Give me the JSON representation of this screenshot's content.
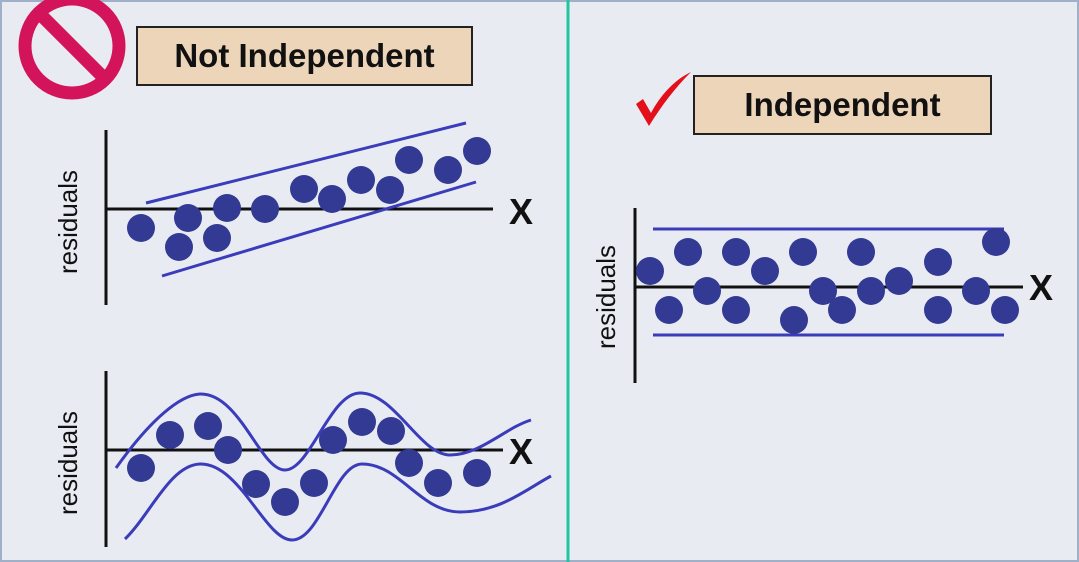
{
  "colors": {
    "background": "#e8ecf2",
    "divider": "#20c4a0",
    "dot": "#333a93",
    "band": "#3a3cba",
    "axis": "#111111",
    "label_box": "#edd5b9",
    "no_sign": "#d4145a",
    "check": "#e3101c"
  },
  "left_panel": {
    "title": "Not Independent",
    "status_icon": "no-sign-icon",
    "plot_trend": {
      "y_label": "residuals",
      "x_label": "X",
      "pattern": "linear trend"
    },
    "plot_wave": {
      "y_label": "residuals",
      "x_label": "X",
      "pattern": "cyclical"
    }
  },
  "right_panel": {
    "title": "Independent",
    "status_icon": "checkmark-icon",
    "plot_random": {
      "y_label": "residuals",
      "x_label": "X",
      "pattern": "random"
    }
  }
}
